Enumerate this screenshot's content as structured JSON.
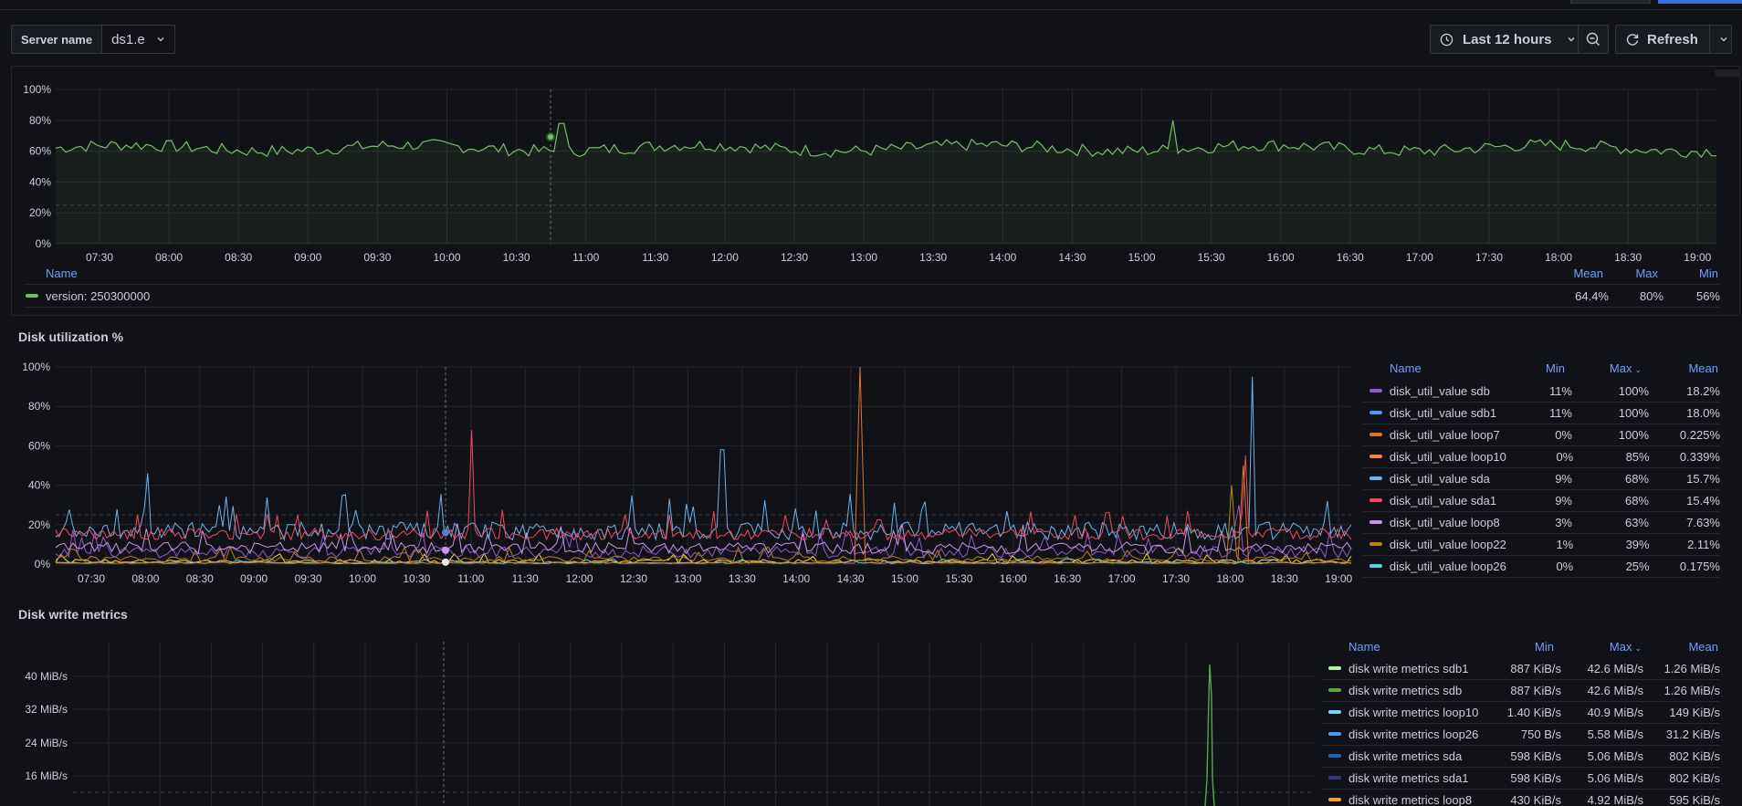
{
  "variable": {
    "label": "Server name",
    "value": "ds1.e"
  },
  "toolbar": {
    "time_range": "Last 12 hours",
    "refresh": "Refresh"
  },
  "time_ticks": [
    "07:30",
    "08:00",
    "08:30",
    "09:00",
    "09:30",
    "10:00",
    "10:30",
    "11:00",
    "11:30",
    "12:00",
    "12:30",
    "13:00",
    "13:30",
    "14:00",
    "14:30",
    "15:00",
    "15:30",
    "16:00",
    "16:30",
    "17:00",
    "17:30",
    "18:00",
    "18:30",
    "19:00"
  ],
  "version_panel": {
    "legend_headers": {
      "name": "Name",
      "mean": "Mean",
      "max": "Max",
      "min": "Min"
    },
    "rows": [
      {
        "name": "version: 250300000",
        "color": "#73bf69",
        "mean": "64.4%",
        "max": "80%",
        "min": "56%"
      }
    ],
    "chart_data": {
      "type": "line",
      "y_ticks": [
        "100%",
        "80%",
        "60%",
        "40%",
        "20%",
        "0%"
      ],
      "ylim": [
        0,
        100
      ],
      "series": [
        {
          "name": "version: 250300000",
          "mean": 64.4,
          "max": 80,
          "min": 56
        }
      ]
    }
  },
  "disk_util_panel": {
    "title": "Disk utilization %",
    "legend_headers": {
      "name": "Name",
      "min": "Min",
      "max": "Max",
      "mean": "Mean"
    },
    "rows": [
      {
        "name": "disk_util_value sdb",
        "color": "#8f5bc8",
        "min": "11%",
        "max": "100%",
        "mean": "18.2%"
      },
      {
        "name": "disk_util_value sdb1",
        "color": "#5794f2",
        "min": "11%",
        "max": "100%",
        "mean": "18.0%"
      },
      {
        "name": "disk_util_value loop7",
        "color": "#e0752d",
        "min": "0%",
        "max": "100%",
        "mean": "0.225%"
      },
      {
        "name": "disk_util_value loop10",
        "color": "#ff7f50",
        "min": "0%",
        "max": "85%",
        "mean": "0.339%"
      },
      {
        "name": "disk_util_value sda",
        "color": "#6db3e8",
        "min": "9%",
        "max": "68%",
        "mean": "15.7%"
      },
      {
        "name": "disk_util_value sda1",
        "color": "#f2495c",
        "min": "9%",
        "max": "68%",
        "mean": "15.4%"
      },
      {
        "name": "disk_util_value loop8",
        "color": "#ca95e5",
        "min": "3%",
        "max": "63%",
        "mean": "7.63%"
      },
      {
        "name": "disk_util_value loop22",
        "color": "#b8860b",
        "min": "1%",
        "max": "39%",
        "mean": "2.11%"
      },
      {
        "name": "disk_util_value loop26",
        "color": "#5fd0e0",
        "min": "0%",
        "max": "25%",
        "mean": "0.175%"
      }
    ],
    "chart_data": {
      "type": "line",
      "y_ticks": [
        "100%",
        "80%",
        "60%",
        "40%",
        "20%",
        "0%"
      ],
      "ylim": [
        0,
        100
      ]
    }
  },
  "disk_write_panel": {
    "title": "Disk write metrics",
    "legend_headers": {
      "name": "Name",
      "min": "Min",
      "max": "Max",
      "mean": "Mean"
    },
    "rows": [
      {
        "name": "disk write metrics sdb1",
        "color": "#b7f09f",
        "min": "887 KiB/s",
        "max": "42.6 MiB/s",
        "mean": "1.26 MiB/s"
      },
      {
        "name": "disk write metrics sdb",
        "color": "#56a64b",
        "min": "887 KiB/s",
        "max": "42.6 MiB/s",
        "mean": "1.26 MiB/s"
      },
      {
        "name": "disk write metrics loop10",
        "color": "#73d7f2",
        "min": "1.40 KiB/s",
        "max": "40.9 MiB/s",
        "mean": "149 KiB/s"
      },
      {
        "name": "disk write metrics loop26",
        "color": "#5794f2",
        "min": "750 B/s",
        "max": "5.58 MiB/s",
        "mean": "31.2 KiB/s"
      },
      {
        "name": "disk write metrics sda",
        "color": "#1f60c4",
        "min": "598 KiB/s",
        "max": "5.06 MiB/s",
        "mean": "802 KiB/s"
      },
      {
        "name": "disk write metrics sda1",
        "color": "#3b3576",
        "min": "598 KiB/s",
        "max": "5.06 MiB/s",
        "mean": "802 KiB/s"
      },
      {
        "name": "disk write metrics loop8",
        "color": "#ff9830",
        "min": "430 KiB/s",
        "max": "4.92 MiB/s",
        "mean": "595 KiB/s"
      }
    ],
    "chart_data": {
      "type": "line",
      "y_ticks": [
        "40 MiB/s",
        "32 MiB/s",
        "24 MiB/s",
        "16 MiB/s"
      ],
      "ylim": [
        0,
        48
      ]
    }
  }
}
